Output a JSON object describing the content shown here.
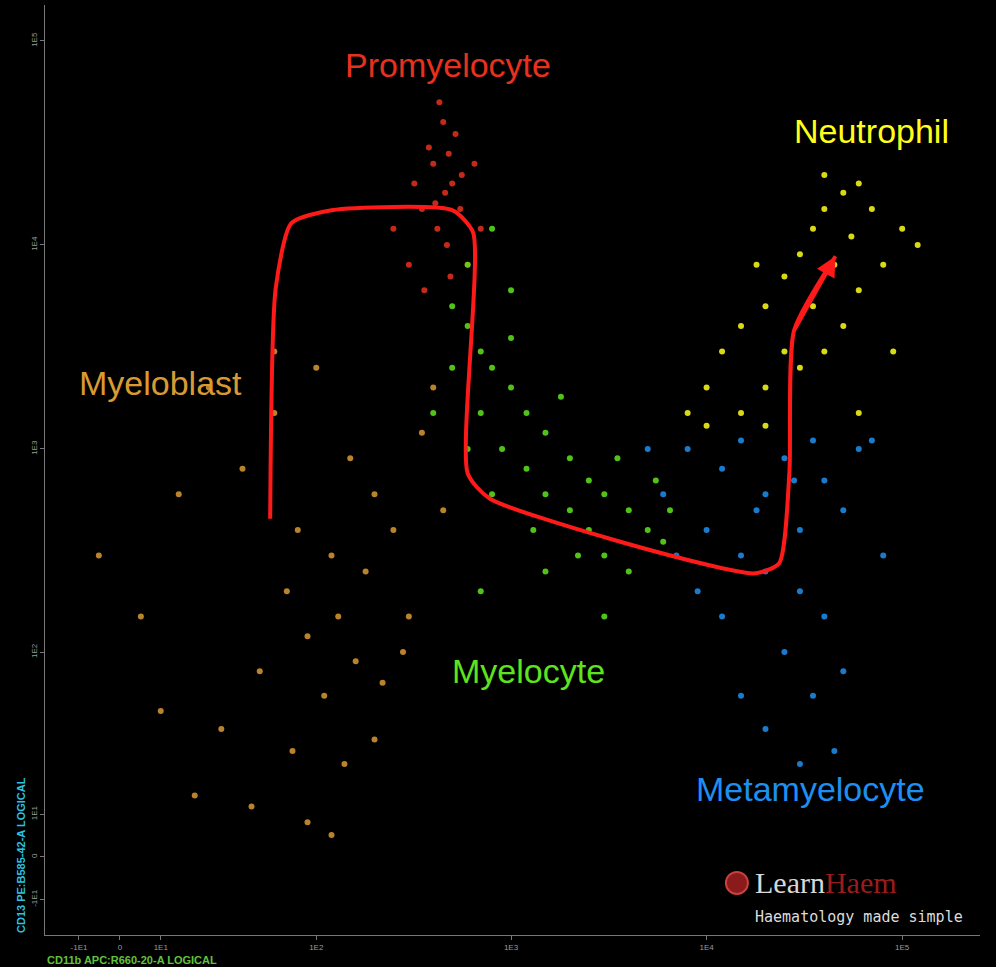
{
  "chart_data": {
    "type": "scatter",
    "x_label": "CD11b APC:R660-20-A LOGICAL",
    "y_label": "CD13 PE:B585-42-A LOGICAL",
    "log": true,
    "grid": false,
    "marker": "dot",
    "xlim": [
      -20,
      250000
    ],
    "ylim": [
      -20,
      150000
    ],
    "xticks": [
      {
        "value": -10,
        "label": "-1E1"
      },
      0,
      {
        "value": 10,
        "label": "1E1"
      },
      {
        "value": 100,
        "label": "1E2"
      },
      {
        "value": 1000,
        "label": "1E3"
      },
      {
        "value": 10000,
        "label": "1E4"
      },
      {
        "value": 100000,
        "label": "1E5"
      }
    ],
    "yticks": [
      {
        "value": -10,
        "label": "-1E1"
      },
      0,
      {
        "value": 10,
        "label": "1E1"
      },
      {
        "value": 100,
        "label": "1E2"
      },
      {
        "value": 1000,
        "label": "1E3"
      },
      {
        "value": 10000,
        "label": "1E4"
      },
      {
        "value": 100000,
        "label": "1E5"
      }
    ],
    "series": [
      {
        "name": "Myeloblast",
        "color": "#d99a32",
        "label": {
          "x": 10,
          "y": 2100
        },
        "x": [
          40,
          60,
          80,
          100,
          120,
          150,
          200,
          70,
          90,
          130,
          180,
          250,
          300,
          50,
          110,
          160,
          220,
          30,
          75,
          140,
          200,
          20,
          45,
          90,
          120,
          10,
          5,
          -5,
          15,
          350,
          400,
          60,
          25,
          450,
          280
        ],
        "y": [
          800,
          1500,
          400,
          2500,
          300,
          900,
          600,
          200,
          120,
          150,
          250,
          400,
          150,
          80,
          60,
          90,
          70,
          40,
          30,
          25,
          35,
          15,
          12,
          8,
          5,
          50,
          150,
          300,
          600,
          1200,
          2000,
          3000,
          2000,
          500,
          100
        ]
      },
      {
        "name": "Promyelocyte",
        "color": "#e8301e",
        "label": {
          "x": 475,
          "y": 76000
        },
        "x": [
          300,
          350,
          400,
          450,
          500,
          420,
          380,
          470,
          550,
          600,
          320,
          430,
          480,
          520,
          250,
          700,
          360,
          460,
          410,
          560,
          490,
          650
        ],
        "y": [
          8000,
          15000,
          25000,
          40000,
          20000,
          12000,
          30000,
          10000,
          15000,
          8000,
          20000,
          50000,
          28000,
          35000,
          12000,
          12000,
          6000,
          18000,
          16000,
          22000,
          7000,
          25000
        ]
      },
      {
        "name": "Myelocyte",
        "color": "#5ee41c",
        "label": {
          "x": 1230,
          "y": 80
        },
        "x": [
          500,
          600,
          700,
          800,
          1000,
          1200,
          1500,
          2000,
          2500,
          3000,
          4000,
          5000,
          6000,
          700,
          900,
          1200,
          1500,
          2000,
          2500,
          3000,
          4000,
          600,
          800,
          500,
          1000,
          1800,
          3500,
          5500,
          6500,
          2200,
          1300,
          800,
          600,
          400,
          1000,
          700,
          1500,
          3000
        ],
        "y": [
          5000,
          4000,
          3000,
          2500,
          2000,
          1500,
          1200,
          900,
          700,
          600,
          500,
          400,
          350,
          1500,
          1000,
          800,
          600,
          500,
          400,
          300,
          250,
          8000,
          12000,
          2500,
          3500,
          1800,
          900,
          700,
          500,
          300,
          400,
          600,
          1000,
          1500,
          6000,
          200,
          250,
          150
        ]
      },
      {
        "name": "Metamyelocyte",
        "color": "#1e8ff0",
        "label": {
          "x": 33800,
          "y": 17
        },
        "x": [
          8000,
          12000,
          15000,
          20000,
          25000,
          30000,
          40000,
          50000,
          60000,
          10000,
          15000,
          20000,
          30000,
          40000,
          6000,
          7000,
          12000,
          25000,
          35000,
          50000,
          20000,
          30000,
          15000,
          80000,
          70000,
          45000,
          5000,
          9000,
          18000,
          28000,
          35000
        ],
        "y": [
          1000,
          800,
          1100,
          600,
          900,
          400,
          700,
          500,
          1000,
          400,
          300,
          250,
          200,
          150,
          600,
          300,
          150,
          100,
          60,
          80,
          40,
          25,
          60,
          300,
          1100,
          30,
          1000,
          200,
          500,
          700,
          1100
        ]
      },
      {
        "name": "Neutrophil",
        "color": "#ffff1a",
        "label": {
          "x": 70000,
          "y": 36000
        },
        "x": [
          8000,
          10000,
          12000,
          15000,
          20000,
          25000,
          30000,
          35000,
          40000,
          50000,
          60000,
          15000,
          20000,
          30000,
          40000,
          50000,
          60000,
          80000,
          100000,
          70000,
          45000,
          25000,
          35000,
          20000,
          10000,
          60000,
          90000,
          55000,
          120000,
          40000,
          18000
        ],
        "y": [
          1500,
          2000,
          3000,
          4000,
          5000,
          7000,
          9000,
          12000,
          15000,
          18000,
          20000,
          1500,
          2000,
          2500,
          3000,
          4000,
          6000,
          8000,
          12000,
          15000,
          8000,
          3000,
          5000,
          1300,
          1300,
          1500,
          3000,
          11000,
          10000,
          22000,
          8000
        ]
      }
    ],
    "arrow": {
      "color": "#ff1a1a",
      "x": [
        57,
        61,
        74,
        120,
        500,
        640,
        600,
        780,
        17400,
        23500,
        26500,
        28000,
        45600
      ],
      "y": [
        455,
        6100,
        12800,
        14800,
        14800,
        11500,
        760,
        570,
        245,
        275,
        760,
        3800,
        8800
      ]
    },
    "watermark": [
      "Learn",
      "Haem"
    ],
    "tagline": "Haematology made simple"
  }
}
